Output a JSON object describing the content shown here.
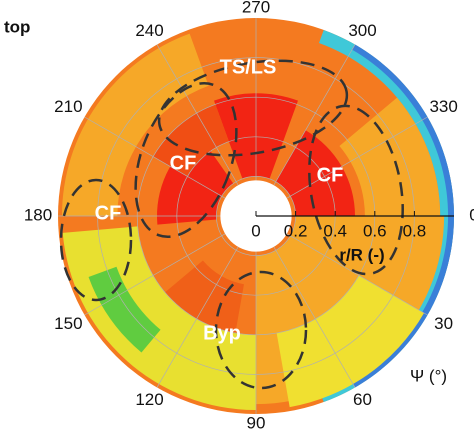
{
  "chart_data": {
    "type": "polar",
    "title": "top",
    "thetaticks": [
      0,
      30,
      60,
      90,
      120,
      150,
      180,
      210,
      240,
      270,
      300,
      330
    ],
    "rlim": [
      0,
      1
    ],
    "rticks": [
      0,
      0.2,
      0.4,
      0.6,
      0.8
    ],
    "r_label": "r/R (-)",
    "theta_label": "Ψ (°)",
    "annotations": [
      "TS/LS",
      "CF",
      "CF",
      "CF",
      "Byp"
    ]
  }
}
